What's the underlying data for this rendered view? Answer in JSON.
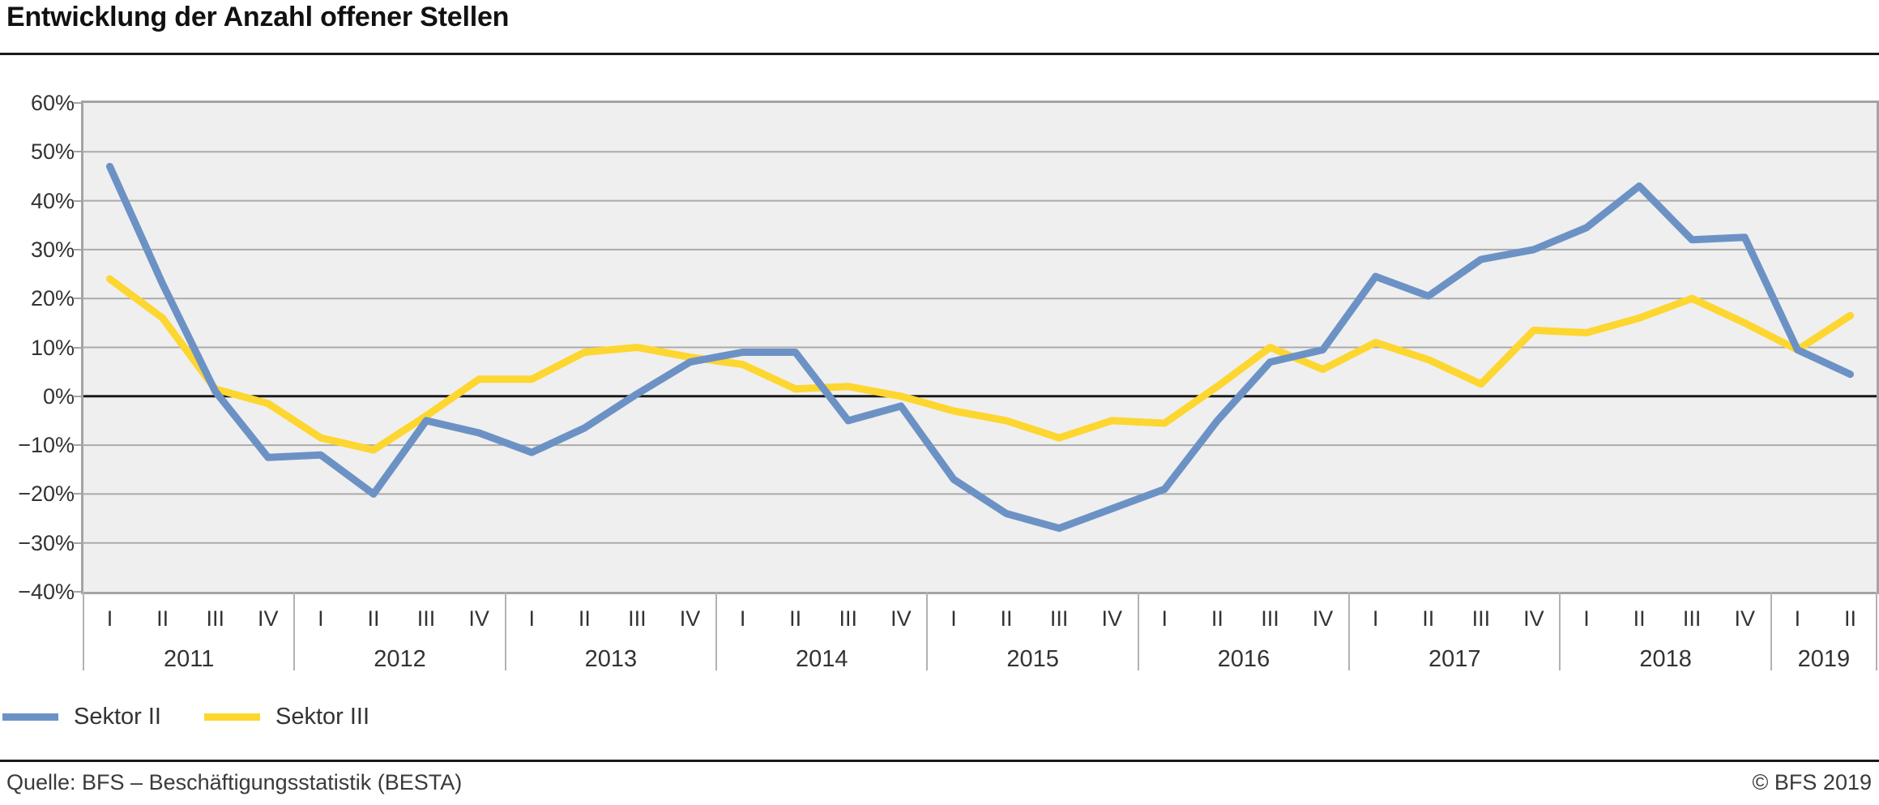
{
  "header": {
    "title": "Entwicklung der Anzahl offener Stellen"
  },
  "chart_data": {
    "type": "line",
    "title": "Entwicklung der Anzahl offener Stellen",
    "grid": true,
    "legend_position": "bottom-left",
    "y_axis": {
      "min": -40,
      "max": 60,
      "step": 10,
      "zero_line": true,
      "tick_labels": [
        "60%",
        "50%",
        "40%",
        "30%",
        "20%",
        "10%",
        "0%",
        "−10%",
        "−20%",
        "−30%",
        "−40%"
      ]
    },
    "x_axis": {
      "years": [
        {
          "label": "2011",
          "quarters": [
            "I",
            "II",
            "III",
            "IV"
          ]
        },
        {
          "label": "2012",
          "quarters": [
            "I",
            "II",
            "III",
            "IV"
          ]
        },
        {
          "label": "2013",
          "quarters": [
            "I",
            "II",
            "III",
            "IV"
          ]
        },
        {
          "label": "2014",
          "quarters": [
            "I",
            "II",
            "III",
            "IV"
          ]
        },
        {
          "label": "2015",
          "quarters": [
            "I",
            "II",
            "III",
            "IV"
          ]
        },
        {
          "label": "2016",
          "quarters": [
            "I",
            "II",
            "III",
            "IV"
          ]
        },
        {
          "label": "2017",
          "quarters": [
            "I",
            "II",
            "III",
            "IV"
          ]
        },
        {
          "label": "2018",
          "quarters": [
            "I",
            "II",
            "III",
            "IV"
          ]
        },
        {
          "label": "2019",
          "quarters": [
            "I",
            "II"
          ]
        }
      ]
    },
    "series": [
      {
        "name": "Sektor II",
        "color": "#6c92c5",
        "values": [
          47,
          23,
          1,
          -12.5,
          -12,
          -20,
          -5,
          -7.5,
          -11.5,
          -6.5,
          0.5,
          7,
          9,
          9,
          -5,
          -2,
          -17,
          -24,
          -27,
          -23,
          -19,
          -5,
          7,
          9.5,
          24.5,
          20.5,
          28,
          30,
          34.5,
          43,
          32,
          32.5,
          9.5,
          4.5
        ]
      },
      {
        "name": "Sektor III",
        "color": "#fdd630",
        "values": [
          24,
          16,
          1.5,
          -1.5,
          -8.5,
          -11,
          -4,
          3.5,
          3.5,
          9,
          10,
          8,
          6.5,
          1.5,
          2,
          0,
          -3,
          -5,
          -8.5,
          -5,
          -5.5,
          2,
          10,
          5.5,
          11,
          7.5,
          2.5,
          13.5,
          13,
          16,
          20,
          15,
          9.5,
          16.5
        ]
      }
    ],
    "colors": {
      "plot_background": "#efefef",
      "gridline": "#ababab",
      "zero_line": "#1a1a1a",
      "border": "#a4a4a4"
    }
  },
  "footer": {
    "source": "Quelle: BFS – Beschäftigungsstatistik (BESTA)",
    "copyright": "© BFS 2019"
  }
}
